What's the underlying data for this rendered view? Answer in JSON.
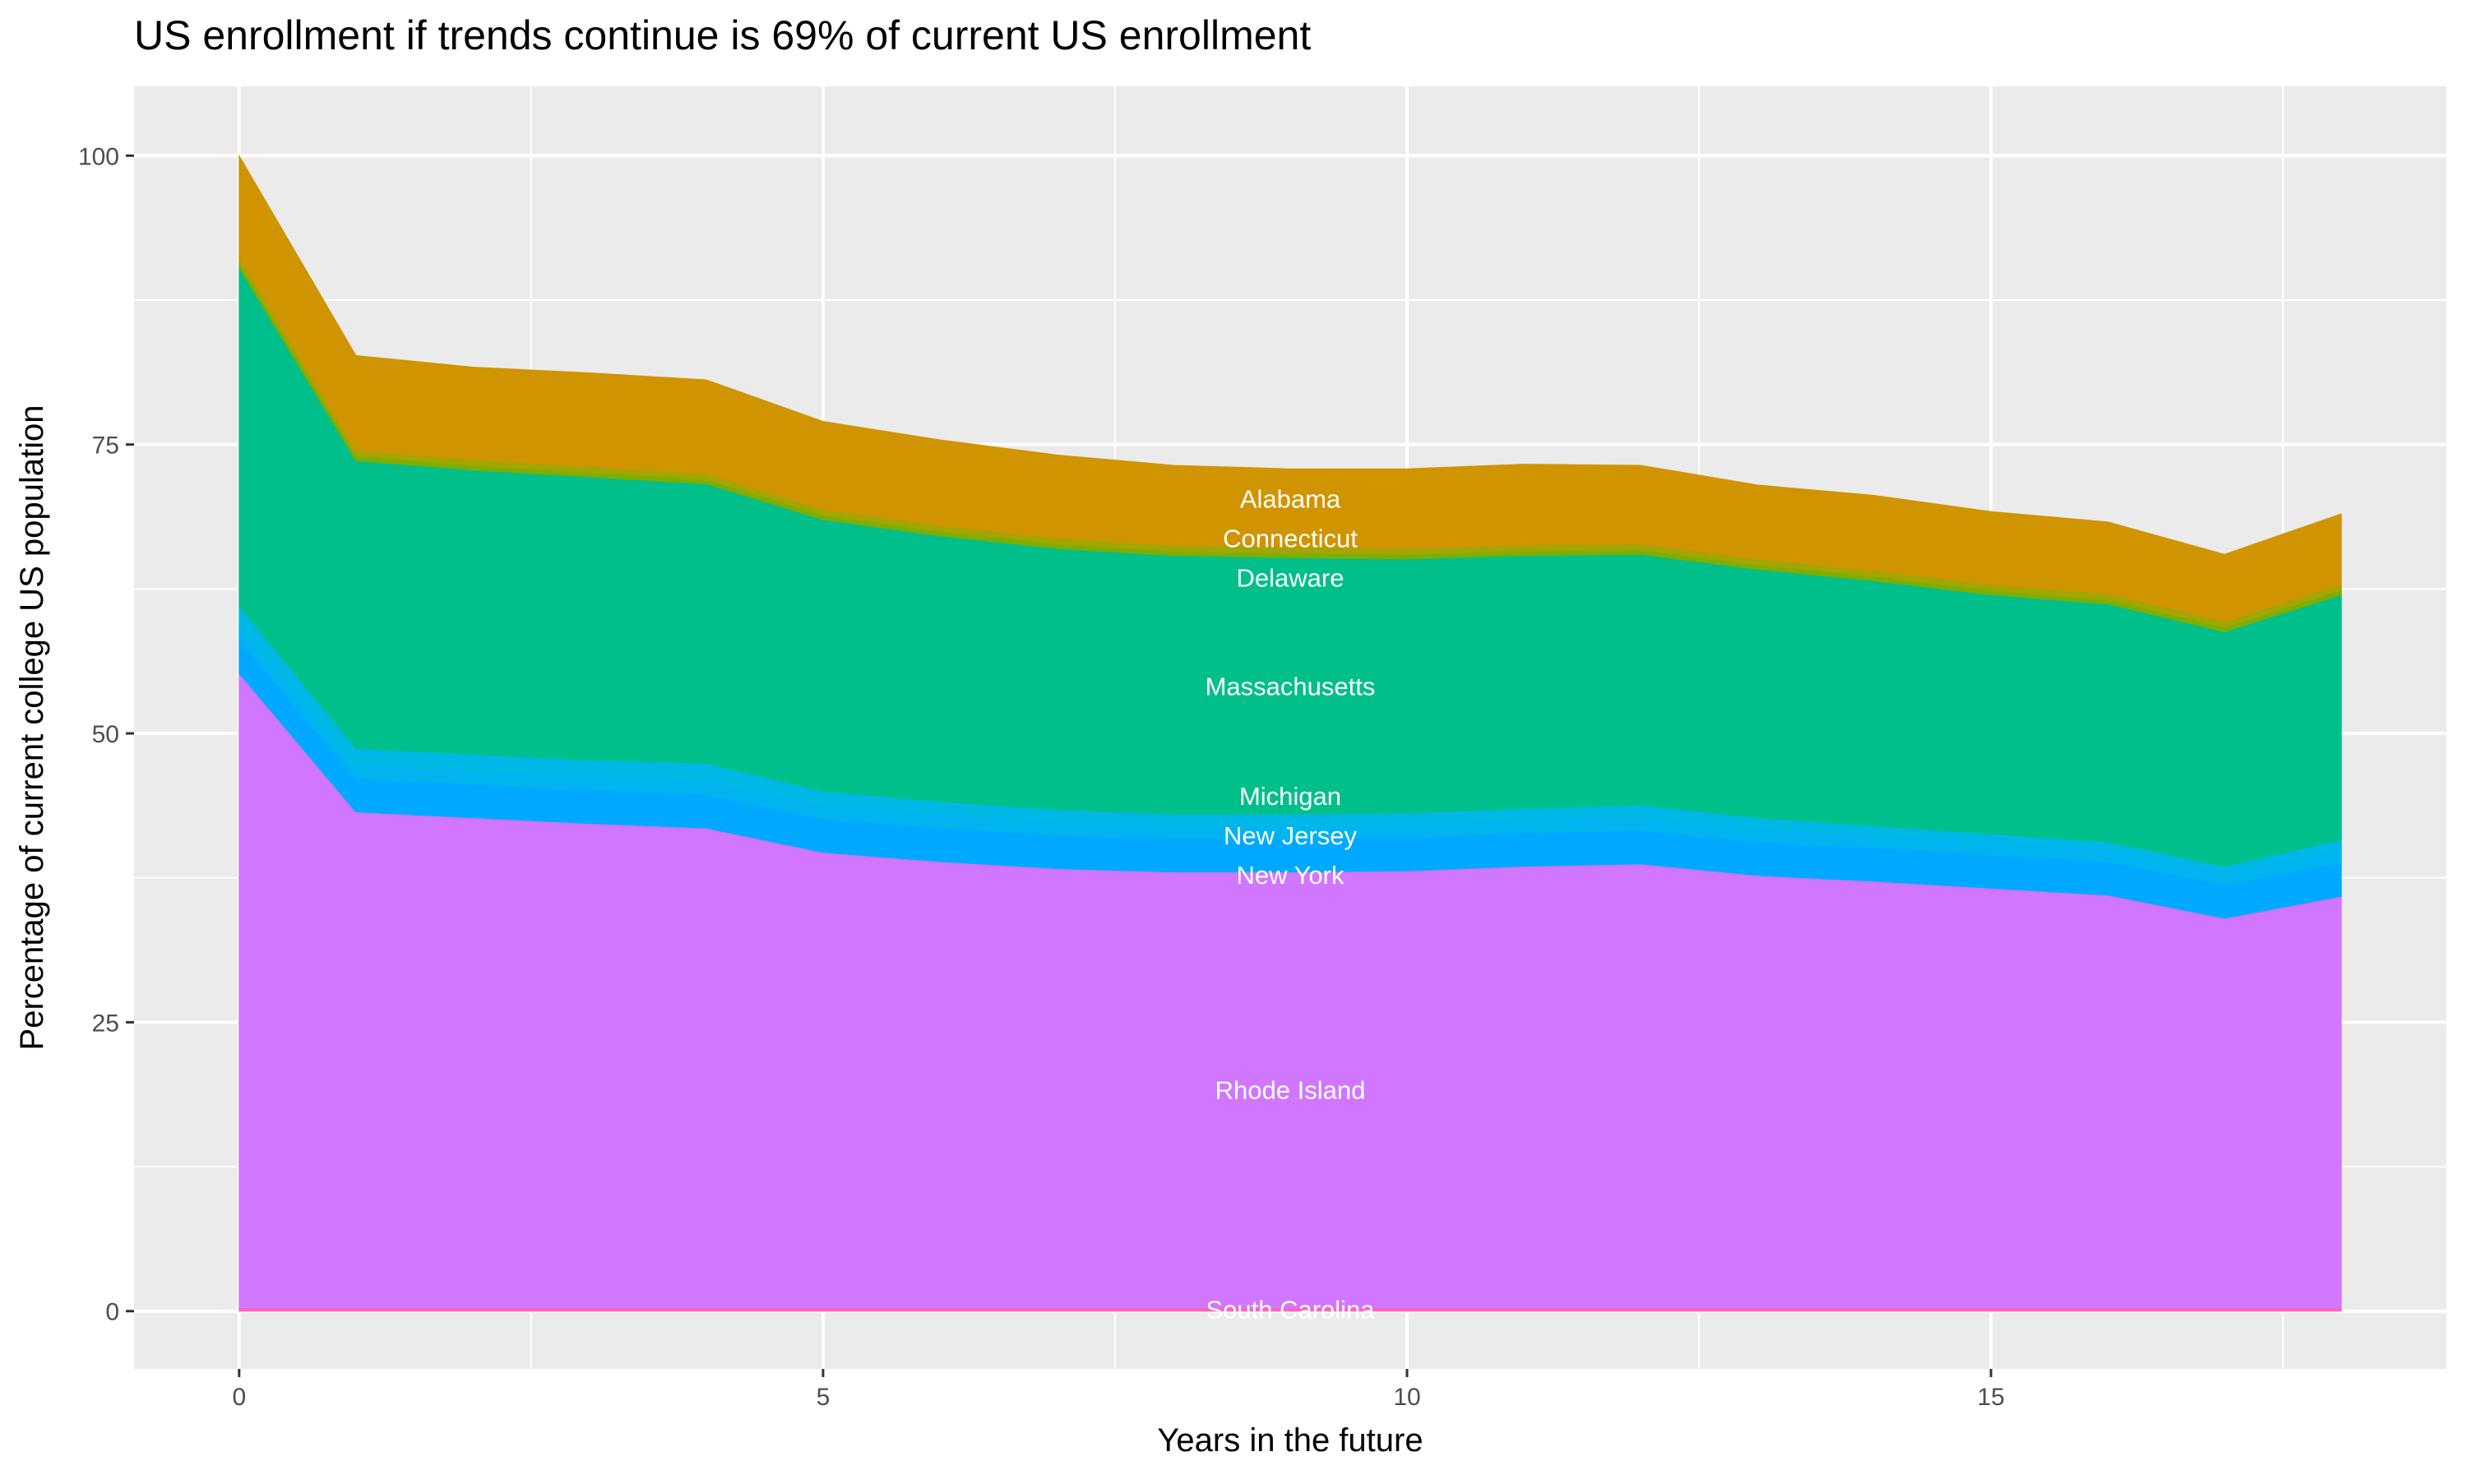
{
  "chart_data": {
    "type": "area",
    "stacked": true,
    "title": "US enrollment if trends continue is 69% of current US enrollment",
    "xlabel": "Years in the future",
    "ylabel": "Percentage of current college US population",
    "xlim": [
      -0.9,
      18.9
    ],
    "ylim": [
      -5,
      106
    ],
    "x_ticks": [
      0,
      5,
      10,
      15
    ],
    "y_ticks": [
      0,
      25,
      50,
      75,
      100
    ],
    "grid": true,
    "legend": "none",
    "x": [
      0,
      1,
      2,
      3,
      4,
      5,
      6,
      7,
      8,
      9,
      10,
      11,
      12,
      13,
      14,
      15,
      16,
      17,
      18
    ],
    "series": [
      {
        "name": "South Carolina",
        "color": "#FF62BC",
        "values": [
          0.3,
          0.3,
          0.3,
          0.3,
          0.3,
          0.3,
          0.3,
          0.3,
          0.3,
          0.3,
          0.3,
          0.3,
          0.3,
          0.3,
          0.3,
          0.3,
          0.3,
          0.3,
          0.3
        ]
      },
      {
        "name": "Rhode Island",
        "color": "#D177FF",
        "values": [
          54.9,
          42.9,
          42.4,
          41.9,
          41.5,
          39.4,
          38.6,
          38.0,
          37.7,
          37.7,
          37.8,
          38.2,
          38.4,
          37.4,
          36.9,
          36.3,
          35.7,
          33.7,
          35.6
        ]
      },
      {
        "name": "New York",
        "color": "#00A9FF",
        "values": [
          2.9,
          2.9,
          2.9,
          2.9,
          2.9,
          2.9,
          2.9,
          2.9,
          2.9,
          2.9,
          2.9,
          2.9,
          2.9,
          2.9,
          2.9,
          2.9,
          2.9,
          2.9,
          2.9
        ]
      },
      {
        "name": "New Jersey",
        "color": "#00B4EF",
        "values": [
          1.2,
          1.2,
          1.2,
          1.2,
          1.2,
          1.2,
          1.2,
          1.2,
          1.2,
          1.2,
          1.2,
          1.2,
          1.2,
          1.2,
          1.2,
          1.2,
          1.2,
          1.2,
          1.2
        ]
      },
      {
        "name": "Michigan",
        "color": "#00B8E5",
        "values": [
          1.7,
          1.4,
          1.4,
          1.4,
          1.5,
          1.2,
          1.1,
          1.0,
          0.9,
          0.9,
          0.9,
          0.9,
          1.0,
          0.9,
          0.7,
          0.6,
          0.5,
          0.4,
          0.8
        ]
      },
      {
        "name": "Massachusetts",
        "color": "#00BF8A",
        "values": [
          29.3,
          24.9,
          24.6,
          24.5,
          24.2,
          23.5,
          23.0,
          22.6,
          22.4,
          22.2,
          22.0,
          21.9,
          21.7,
          21.5,
          21.2,
          20.7,
          20.6,
          20.3,
          21.2
        ]
      },
      {
        "name": "Delaware",
        "color": "#7CAE00",
        "values": [
          0.4,
          0.4,
          0.4,
          0.4,
          0.4,
          0.4,
          0.4,
          0.4,
          0.4,
          0.4,
          0.4,
          0.4,
          0.4,
          0.4,
          0.4,
          0.4,
          0.4,
          0.4,
          0.4
        ]
      },
      {
        "name": "Connecticut",
        "color": "#A3A500",
        "values": [
          0.5,
          0.5,
          0.5,
          0.5,
          0.5,
          0.5,
          0.5,
          0.5,
          0.5,
          0.5,
          0.5,
          0.5,
          0.5,
          0.5,
          0.5,
          0.5,
          0.5,
          0.5,
          0.5
        ]
      },
      {
        "name": "Alabama",
        "color": "#D09400",
        "values": [
          8.8,
          8.2,
          8.0,
          8.1,
          8.1,
          7.6,
          7.4,
          7.2,
          6.9,
          6.8,
          6.9,
          7.0,
          6.8,
          6.4,
          6.5,
          6.3,
          6.2,
          5.8,
          6.1
        ]
      }
    ],
    "label_x": 9,
    "panel_color": "#EBEBEB",
    "grid_color": "#FFFFFF"
  }
}
